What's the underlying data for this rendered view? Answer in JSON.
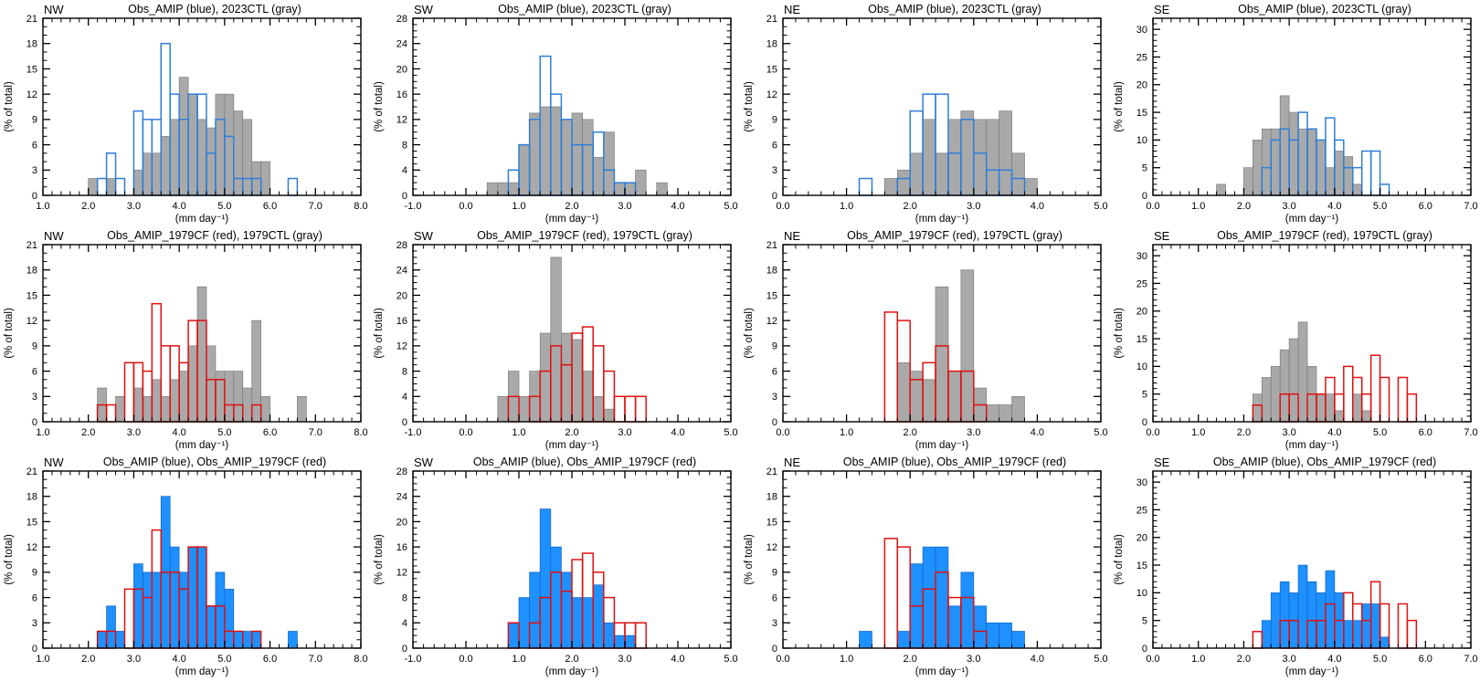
{
  "figure": {
    "xlabel": "(mm day⁻¹)",
    "ylabel": "(% of total)",
    "colors": {
      "gray_fill": "#a9a9a9",
      "gray_edge": "#7d7d7d",
      "blue_outline": "#2e7ed9",
      "blue_fill": "#1e90ff",
      "red_outline": "#e01010",
      "axis": "#000000"
    }
  },
  "chart_data": [
    {
      "type": "bar",
      "row": 1,
      "region": "NW",
      "title": "Obs_AMIP (blue), 2023CTL (gray)",
      "xlabel": "(mm day⁻¹)",
      "ylabel": "(% of total)",
      "xlim": [
        1.0,
        8.0
      ],
      "ylim": [
        0,
        21
      ],
      "x_major": 1.0,
      "y_major": 3,
      "bin_width": 0.2,
      "series": [
        {
          "name": "2023CTL",
          "style": "fill",
          "color": "#a9a9a9",
          "edge": "#7d7d7d",
          "start": 2.0,
          "values": [
            2,
            0,
            2,
            0,
            0,
            3,
            5,
            5,
            7,
            9,
            14,
            12,
            9,
            8,
            12,
            12,
            10,
            9,
            4,
            4
          ]
        },
        {
          "name": "Obs_AMIP",
          "style": "outline",
          "color": "#2e7ed9",
          "start": 2.2,
          "values": [
            2,
            5,
            2,
            0,
            10,
            9,
            9,
            18,
            12,
            9,
            12,
            12,
            5,
            9,
            7,
            2,
            2,
            2,
            0,
            0,
            0,
            2
          ]
        }
      ]
    },
    {
      "type": "bar",
      "row": 1,
      "region": "SW",
      "title": "Obs_AMIP (blue), 2023CTL (gray)",
      "xlabel": "(mm day⁻¹)",
      "ylabel": "(% of total)",
      "xlim": [
        -1.0,
        5.0
      ],
      "ylim": [
        0,
        28
      ],
      "x_major": 1.0,
      "y_major": 4,
      "bin_width": 0.2,
      "series": [
        {
          "name": "2023CTL",
          "style": "fill",
          "color": "#a9a9a9",
          "edge": "#7d7d7d",
          "start": 0.4,
          "values": [
            2,
            2,
            2,
            8,
            13,
            14,
            14,
            12,
            13,
            12,
            6,
            10,
            2,
            2,
            4,
            0,
            2
          ]
        },
        {
          "name": "Obs_AMIP",
          "style": "outline",
          "color": "#2e7ed9",
          "start": 0.8,
          "values": [
            4,
            8,
            12,
            22,
            16,
            12,
            8,
            8,
            10,
            4,
            2,
            2
          ]
        }
      ]
    },
    {
      "type": "bar",
      "row": 1,
      "region": "NE",
      "title": "Obs_AMIP (blue), 2023CTL (gray)",
      "xlabel": "(mm day⁻¹)",
      "ylabel": "(% of total)",
      "xlim": [
        0.0,
        5.0
      ],
      "ylim": [
        0,
        21
      ],
      "x_major": 1.0,
      "y_major": 3,
      "bin_width": 0.2,
      "series": [
        {
          "name": "2023CTL",
          "style": "fill",
          "color": "#a9a9a9",
          "edge": "#7d7d7d",
          "start": 1.6,
          "values": [
            2,
            3,
            5,
            9,
            5,
            9,
            10,
            9,
            9,
            10,
            5,
            2
          ]
        },
        {
          "name": "Obs_AMIP",
          "style": "outline",
          "color": "#2e7ed9",
          "start": 1.2,
          "values": [
            2,
            0,
            0,
            2,
            10,
            12,
            12,
            5,
            9,
            5,
            3,
            3,
            2
          ]
        }
      ]
    },
    {
      "type": "bar",
      "row": 1,
      "region": "SE",
      "title": "Obs_AMIP (blue), 2023CTL (gray)",
      "xlabel": "(mm day⁻¹)",
      "ylabel": "(% of total)",
      "xlim": [
        0.0,
        7.0
      ],
      "ylim": [
        0,
        32
      ],
      "x_major": 1.0,
      "y_major": 5,
      "bin_width": 0.2,
      "series": [
        {
          "name": "2023CTL",
          "style": "fill",
          "color": "#a9a9a9",
          "edge": "#7d7d7d",
          "start": 1.4,
          "values": [
            2,
            0,
            0,
            5,
            10,
            12,
            12,
            18,
            15,
            12,
            12,
            10,
            5,
            8,
            7,
            2
          ]
        },
        {
          "name": "Obs_AMIP",
          "style": "outline",
          "color": "#2e7ed9",
          "start": 2.4,
          "values": [
            5,
            10,
            12,
            10,
            15,
            12,
            10,
            14,
            10,
            5,
            5,
            8,
            8,
            2
          ]
        }
      ]
    },
    {
      "type": "bar",
      "row": 2,
      "region": "NW",
      "title": "Obs_AMIP_1979CF (red), 1979CTL (gray)",
      "xlabel": "(mm day⁻¹)",
      "ylabel": "(% of total)",
      "xlim": [
        1.0,
        8.0
      ],
      "ylim": [
        0,
        21
      ],
      "x_major": 1.0,
      "y_major": 3,
      "bin_width": 0.2,
      "series": [
        {
          "name": "1979CTL",
          "style": "fill",
          "color": "#a9a9a9",
          "edge": "#7d7d7d",
          "start": 2.2,
          "values": [
            4,
            0,
            3,
            0,
            4,
            3,
            5,
            3,
            5,
            6,
            9,
            16,
            9,
            6,
            6,
            6,
            4,
            12,
            3,
            0,
            0,
            0,
            3
          ]
        },
        {
          "name": "Obs_AMIP_1979CF",
          "style": "outline",
          "color": "#e01010",
          "start": 2.2,
          "values": [
            2,
            2,
            0,
            7,
            7,
            6,
            14,
            9,
            9,
            7,
            12,
            12,
            5,
            5,
            2,
            2,
            0,
            2
          ]
        }
      ]
    },
    {
      "type": "bar",
      "row": 2,
      "region": "SW",
      "title": "Obs_AMIP_1979CF (red), 1979CTL (gray)",
      "xlabel": "(mm day⁻¹)",
      "ylabel": "(% of total)",
      "xlim": [
        -1.0,
        5.0
      ],
      "ylim": [
        0,
        28
      ],
      "x_major": 1.0,
      "y_major": 4,
      "bin_width": 0.2,
      "series": [
        {
          "name": "1979CTL",
          "style": "fill",
          "color": "#a9a9a9",
          "edge": "#7d7d7d",
          "start": 0.6,
          "values": [
            4,
            8,
            4,
            8,
            14,
            26,
            14,
            13,
            8,
            4,
            2
          ]
        },
        {
          "name": "Obs_AMIP_1979CF",
          "style": "outline",
          "color": "#e01010",
          "start": 0.8,
          "values": [
            4,
            0,
            4,
            8,
            12,
            9,
            14,
            15,
            12,
            8,
            4,
            4,
            4
          ]
        }
      ]
    },
    {
      "type": "bar",
      "row": 2,
      "region": "NE",
      "title": "Obs_AMIP_1979CF (red), 1979CTL (gray)",
      "xlabel": "(mm day⁻¹)",
      "ylabel": "(% of total)",
      "xlim": [
        0.0,
        5.0
      ],
      "ylim": [
        0,
        21
      ],
      "x_major": 1.0,
      "y_major": 3,
      "bin_width": 0.2,
      "series": [
        {
          "name": "1979CTL",
          "style": "fill",
          "color": "#a9a9a9",
          "edge": "#7d7d7d",
          "start": 1.8,
          "values": [
            7,
            6,
            5,
            16,
            6,
            18,
            4,
            2,
            2,
            3
          ]
        },
        {
          "name": "Obs_AMIP_1979CF",
          "style": "outline",
          "color": "#e01010",
          "start": 1.6,
          "values": [
            13,
            12,
            5,
            7,
            9,
            6,
            6,
            2
          ]
        }
      ]
    },
    {
      "type": "bar",
      "row": 2,
      "region": "SE",
      "title": "Obs_AMIP_1979CF (red), 1979CTL (gray)",
      "xlabel": "(mm day⁻¹)",
      "ylabel": "(% of total)",
      "xlim": [
        0.0,
        7.0
      ],
      "ylim": [
        0,
        32
      ],
      "x_major": 1.0,
      "y_major": 5,
      "bin_width": 0.2,
      "series": [
        {
          "name": "1979CTL",
          "style": "fill",
          "color": "#a9a9a9",
          "edge": "#7d7d7d",
          "start": 2.2,
          "values": [
            5,
            8,
            10,
            13,
            15,
            18,
            10,
            5,
            5,
            2,
            0,
            5,
            2
          ]
        },
        {
          "name": "Obs_AMIP_1979CF",
          "style": "outline",
          "color": "#e01010",
          "start": 2.2,
          "values": [
            3,
            0,
            0,
            5,
            5,
            0,
            5,
            5,
            8,
            5,
            10,
            8,
            5,
            12,
            8,
            0,
            8,
            5
          ]
        }
      ]
    },
    {
      "type": "bar",
      "row": 3,
      "region": "NW",
      "title": "Obs_AMIP (blue), Obs_AMIP_1979CF (red)",
      "xlabel": "(mm day⁻¹)",
      "ylabel": "(% of total)",
      "xlim": [
        1.0,
        8.0
      ],
      "ylim": [
        0,
        21
      ],
      "x_major": 1.0,
      "y_major": 3,
      "bin_width": 0.2,
      "series": [
        {
          "name": "Obs_AMIP",
          "style": "fill",
          "color": "#1e90ff",
          "edge": "#1565c0",
          "start": 2.2,
          "values": [
            2,
            5,
            2,
            0,
            10,
            9,
            9,
            18,
            12,
            9,
            12,
            12,
            5,
            9,
            7,
            2,
            2,
            2,
            0,
            0,
            0,
            2
          ]
        },
        {
          "name": "Obs_AMIP_1979CF",
          "style": "outline",
          "color": "#e01010",
          "start": 2.2,
          "values": [
            2,
            2,
            0,
            7,
            7,
            6,
            14,
            9,
            9,
            7,
            12,
            12,
            5,
            5,
            2,
            2,
            0,
            2
          ]
        }
      ]
    },
    {
      "type": "bar",
      "row": 3,
      "region": "SW",
      "title": "Obs_AMIP (blue), Obs_AMIP_1979CF (red)",
      "xlabel": "(mm day⁻¹)",
      "ylabel": "(% of total)",
      "xlim": [
        -1.0,
        5.0
      ],
      "ylim": [
        0,
        28
      ],
      "x_major": 1.0,
      "y_major": 4,
      "bin_width": 0.2,
      "series": [
        {
          "name": "Obs_AMIP",
          "style": "fill",
          "color": "#1e90ff",
          "edge": "#1565c0",
          "start": 0.8,
          "values": [
            4,
            8,
            12,
            22,
            16,
            12,
            8,
            8,
            10,
            4,
            2,
            2
          ]
        },
        {
          "name": "Obs_AMIP_1979CF",
          "style": "outline",
          "color": "#e01010",
          "start": 0.8,
          "values": [
            4,
            0,
            4,
            8,
            12,
            9,
            14,
            15,
            12,
            8,
            4,
            4,
            4
          ]
        }
      ]
    },
    {
      "type": "bar",
      "row": 3,
      "region": "NE",
      "title": "Obs_AMIP (blue), Obs_AMIP_1979CF (red)",
      "xlabel": "(mm day⁻¹)",
      "ylabel": "(% of total)",
      "xlim": [
        0.0,
        5.0
      ],
      "ylim": [
        0,
        21
      ],
      "x_major": 1.0,
      "y_major": 3,
      "bin_width": 0.2,
      "series": [
        {
          "name": "Obs_AMIP",
          "style": "fill",
          "color": "#1e90ff",
          "edge": "#1565c0",
          "start": 1.2,
          "values": [
            2,
            0,
            0,
            2,
            10,
            12,
            12,
            5,
            9,
            5,
            3,
            3,
            2
          ]
        },
        {
          "name": "Obs_AMIP_1979CF",
          "style": "outline",
          "color": "#e01010",
          "start": 1.6,
          "values": [
            13,
            12,
            5,
            7,
            9,
            6,
            6,
            2
          ]
        }
      ]
    },
    {
      "type": "bar",
      "row": 3,
      "region": "SE",
      "title": "Obs_AMIP (blue), Obs_AMIP_1979CF (red)",
      "xlabel": "(mm day⁻¹)",
      "ylabel": "(% of total)",
      "xlim": [
        0.0,
        7.0
      ],
      "ylim": [
        0,
        32
      ],
      "x_major": 1.0,
      "y_major": 5,
      "bin_width": 0.2,
      "series": [
        {
          "name": "Obs_AMIP",
          "style": "fill",
          "color": "#1e90ff",
          "edge": "#1565c0",
          "start": 2.4,
          "values": [
            5,
            10,
            12,
            10,
            15,
            12,
            10,
            14,
            10,
            5,
            5,
            8,
            8,
            2
          ]
        },
        {
          "name": "Obs_AMIP_1979CF",
          "style": "outline",
          "color": "#e01010",
          "start": 2.2,
          "values": [
            3,
            0,
            0,
            5,
            5,
            0,
            5,
            5,
            8,
            5,
            10,
            8,
            5,
            12,
            8,
            0,
            8,
            5
          ]
        }
      ]
    }
  ]
}
